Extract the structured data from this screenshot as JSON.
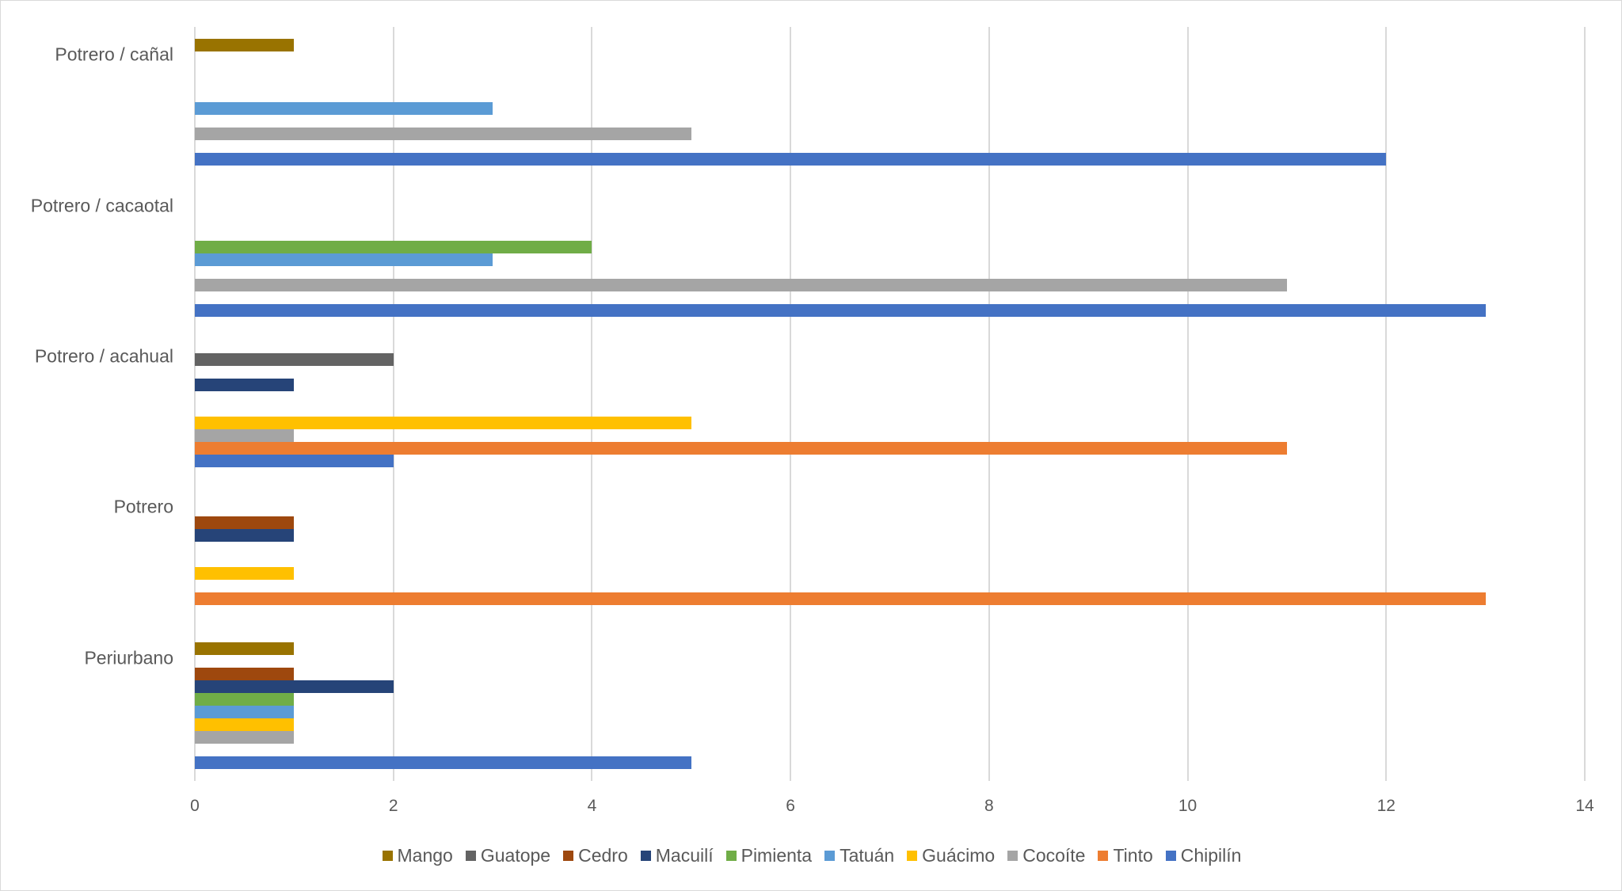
{
  "chart_data": {
    "type": "bar",
    "orientation": "horizontal",
    "title": "",
    "xlabel": "",
    "ylabel": "",
    "xlim": [
      0,
      14
    ],
    "x_ticks": [
      "0",
      "2",
      "4",
      "6",
      "8",
      "10",
      "12",
      "14"
    ],
    "grid": "vertical",
    "legend_position": "bottom",
    "categories": [
      "Potrero / cañal",
      "Potrero / cacaotal",
      "Potrero / acahual",
      "Potrero",
      "Periurbano"
    ],
    "series": [
      {
        "name": "Mango",
        "color": "#997300",
        "values": [
          1,
          0,
          0,
          0,
          1
        ]
      },
      {
        "name": "Guatope",
        "color": "#636363",
        "values": [
          0,
          0,
          2,
          0,
          0
        ]
      },
      {
        "name": "Cedro",
        "color": "#9E480E",
        "values": [
          0,
          0,
          0,
          1,
          1
        ]
      },
      {
        "name": "Macuilí",
        "color": "#264478",
        "values": [
          0,
          0,
          1,
          1,
          2
        ]
      },
      {
        "name": "Pimienta",
        "color": "#70AD47",
        "values": [
          0,
          4,
          0,
          0,
          1
        ]
      },
      {
        "name": "Tatuán",
        "color": "#5B9BD5",
        "values": [
          3,
          3,
          0,
          0,
          1
        ]
      },
      {
        "name": "Guácimo",
        "color": "#FFC000",
        "values": [
          0,
          0,
          5,
          1,
          1
        ]
      },
      {
        "name": "Cocoíte",
        "color": "#A5A5A5",
        "values": [
          5,
          11,
          1,
          0,
          1
        ]
      },
      {
        "name": "Tinto",
        "color": "#ED7D31",
        "values": [
          0,
          0,
          11,
          13,
          0
        ]
      },
      {
        "name": "Chipilín",
        "color": "#4472C4",
        "values": [
          12,
          13,
          2,
          0,
          5
        ]
      }
    ]
  },
  "legend": [
    {
      "label": "Mango",
      "color": "#997300"
    },
    {
      "label": "Guatope",
      "color": "#636363"
    },
    {
      "label": "Cedro",
      "color": "#9E480E"
    },
    {
      "label": "Macuilí",
      "color": "#264478"
    },
    {
      "label": "Pimienta",
      "color": "#70AD47"
    },
    {
      "label": "Tatuán",
      "color": "#5B9BD5"
    },
    {
      "label": "Guácimo",
      "color": "#FFC000"
    },
    {
      "label": "Cocoíte",
      "color": "#A5A5A5"
    },
    {
      "label": "Tinto",
      "color": "#ED7D31"
    },
    {
      "label": "Chipilín",
      "color": "#4472C4"
    }
  ]
}
